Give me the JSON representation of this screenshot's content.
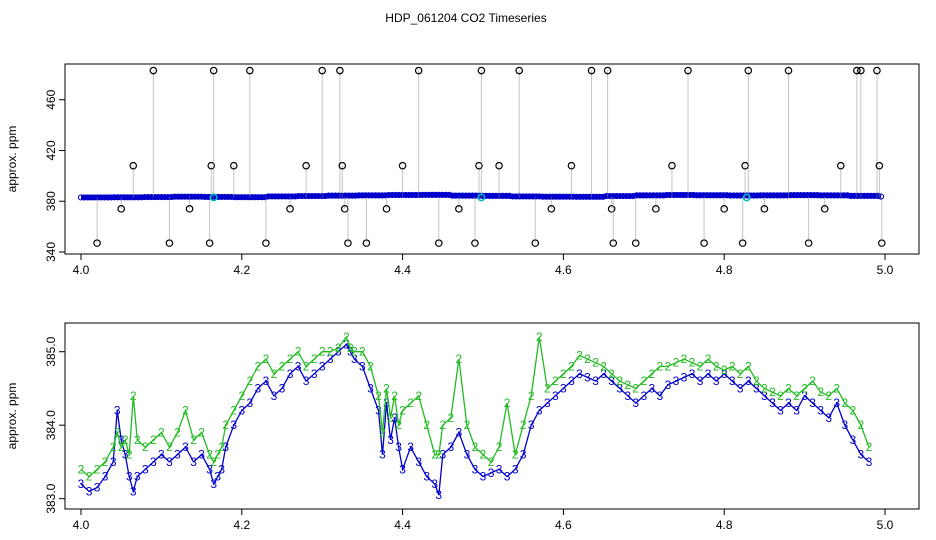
{
  "chart_data": [
    {
      "type": "scatter",
      "title": "HDP_061204  CO2 Timeseries",
      "xlabel": "",
      "ylabel": "approx. ppm",
      "xlim": [
        4.0,
        5.0
      ],
      "ylim": [
        340,
        485
      ],
      "x_ticks": [
        4.0,
        4.2,
        4.4,
        4.6,
        4.8,
        5.0
      ],
      "x_tick_labels": [
        "4.0",
        "4.2",
        "4.4",
        "4.6",
        "4.8",
        "5.0"
      ],
      "y_ticks": [
        340,
        380,
        420,
        460
      ],
      "y_tick_labels": [
        "340",
        "380",
        "420",
        "460"
      ],
      "baseline": {
        "x_start": 4.0,
        "x_end": 4.995,
        "y": [
          383.0,
          383.1,
          383.3,
          383.6,
          383.4,
          383.2,
          383.8,
          384.1,
          384.4,
          384.6,
          384.9,
          385.0,
          384.4,
          384.2,
          383.8,
          383.6,
          383.5,
          384.1,
          384.6,
          384.9,
          384.7,
          384.5,
          384.6,
          384.8,
          384.6,
          384.2,
          383.7
        ],
        "color": "#0000cc"
      },
      "outliers": {
        "x": [
          4.02,
          4.05,
          4.065,
          4.09,
          4.11,
          4.135,
          4.16,
          4.162,
          4.165,
          4.19,
          4.21,
          4.23,
          4.26,
          4.28,
          4.3,
          4.322,
          4.325,
          4.328,
          4.332,
          4.355,
          4.38,
          4.4,
          4.42,
          4.445,
          4.47,
          4.49,
          4.495,
          4.498,
          4.52,
          4.545,
          4.565,
          4.585,
          4.61,
          4.635,
          4.655,
          4.66,
          4.662,
          4.69,
          4.715,
          4.735,
          4.755,
          4.775,
          4.8,
          4.823,
          4.826,
          4.83,
          4.85,
          4.88,
          4.905,
          4.925,
          4.945,
          4.965,
          4.97,
          4.99,
          4.993,
          4.996
        ],
        "y": [
          347,
          374,
          408,
          483,
          347,
          374,
          347,
          408,
          483,
          408,
          483,
          347,
          374,
          408,
          483,
          483,
          408,
          374,
          347,
          347,
          374,
          408,
          483,
          347,
          374,
          347,
          408,
          483,
          408,
          483,
          347,
          374,
          408,
          483,
          483,
          374,
          347,
          347,
          374,
          408,
          483,
          347,
          374,
          347,
          408,
          483,
          374,
          483,
          347,
          374,
          408,
          483,
          483,
          483,
          408,
          347
        ],
        "marker": "circle",
        "color": "#000000"
      },
      "highlights": {
        "x": [
          4.165,
          4.498,
          4.828
        ],
        "y": [
          383,
          383,
          383
        ],
        "color": "#00bbbb"
      }
    },
    {
      "type": "line",
      "xlabel": "",
      "ylabel": "approx. ppm",
      "xlim": [
        4.0,
        5.0
      ],
      "ylim": [
        382.9,
        385.35
      ],
      "x_ticks": [
        4.0,
        4.2,
        4.4,
        4.6,
        4.8,
        5.0
      ],
      "x_tick_labels": [
        "4.0",
        "4.2",
        "4.4",
        "4.6",
        "4.8",
        "5.0"
      ],
      "y_ticks": [
        383.0,
        384.0,
        385.0
      ],
      "y_tick_labels": [
        "383.0",
        "384.0",
        "385.0"
      ],
      "series": [
        {
          "marker": "3",
          "color": "#0000cc",
          "x": [
            4.0,
            4.01,
            4.02,
            4.03,
            4.04,
            4.045,
            4.05,
            4.055,
            4.06,
            4.065,
            4.07,
            4.08,
            4.09,
            4.1,
            4.11,
            4.12,
            4.13,
            4.14,
            4.15,
            4.16,
            4.165,
            4.17,
            4.175,
            4.18,
            4.19,
            4.2,
            4.21,
            4.22,
            4.23,
            4.24,
            4.25,
            4.26,
            4.27,
            4.28,
            4.29,
            4.3,
            4.31,
            4.32,
            4.33,
            4.335,
            4.34,
            4.35,
            4.36,
            4.37,
            4.375,
            4.38,
            4.385,
            4.39,
            4.395,
            4.4,
            4.41,
            4.42,
            4.43,
            4.44,
            4.445,
            4.45,
            4.46,
            4.47,
            4.48,
            4.49,
            4.5,
            4.51,
            4.52,
            4.53,
            4.54,
            4.55,
            4.56,
            4.57,
            4.58,
            4.59,
            4.6,
            4.61,
            4.62,
            4.63,
            4.64,
            4.65,
            4.66,
            4.67,
            4.68,
            4.69,
            4.7,
            4.71,
            4.72,
            4.73,
            4.74,
            4.75,
            4.76,
            4.77,
            4.78,
            4.79,
            4.8,
            4.81,
            4.82,
            4.83,
            4.84,
            4.85,
            4.86,
            4.87,
            4.88,
            4.89,
            4.9,
            4.91,
            4.92,
            4.93,
            4.94,
            4.95,
            4.96,
            4.97,
            4.98
          ],
          "y": [
            383.2,
            383.1,
            383.15,
            383.3,
            383.5,
            384.2,
            383.8,
            383.6,
            383.3,
            383.1,
            383.3,
            383.4,
            383.5,
            383.6,
            383.5,
            383.6,
            383.7,
            383.5,
            383.6,
            383.4,
            383.2,
            383.3,
            383.4,
            383.7,
            384.0,
            384.2,
            384.3,
            384.5,
            384.6,
            384.4,
            384.5,
            384.7,
            384.8,
            384.6,
            384.7,
            384.8,
            384.9,
            385.0,
            385.1,
            385.0,
            384.9,
            384.8,
            384.5,
            384.2,
            383.6,
            384.3,
            383.8,
            384.1,
            383.7,
            383.4,
            383.7,
            383.5,
            383.3,
            383.2,
            383.05,
            383.6,
            383.7,
            383.9,
            383.6,
            383.4,
            383.3,
            383.35,
            383.4,
            383.3,
            383.4,
            383.6,
            384.0,
            384.2,
            384.3,
            384.4,
            384.5,
            384.6,
            384.7,
            384.65,
            384.6,
            384.7,
            384.6,
            384.5,
            384.4,
            384.3,
            384.4,
            384.5,
            384.4,
            384.55,
            384.6,
            384.65,
            384.7,
            384.6,
            384.7,
            384.6,
            384.7,
            384.6,
            384.5,
            384.6,
            384.5,
            384.4,
            384.3,
            384.2,
            384.3,
            384.2,
            384.4,
            384.3,
            384.2,
            384.1,
            384.3,
            384.0,
            383.8,
            383.6,
            383.5
          ]
        },
        {
          "marker": "2",
          "color": "#22bb22",
          "x": [
            4.0,
            4.01,
            4.02,
            4.03,
            4.04,
            4.045,
            4.05,
            4.055,
            4.06,
            4.065,
            4.07,
            4.08,
            4.09,
            4.1,
            4.11,
            4.12,
            4.13,
            4.14,
            4.15,
            4.16,
            4.165,
            4.17,
            4.175,
            4.18,
            4.19,
            4.2,
            4.21,
            4.22,
            4.23,
            4.24,
            4.25,
            4.26,
            4.27,
            4.28,
            4.29,
            4.3,
            4.31,
            4.32,
            4.33,
            4.335,
            4.34,
            4.35,
            4.36,
            4.37,
            4.375,
            4.38,
            4.385,
            4.39,
            4.395,
            4.4,
            4.41,
            4.42,
            4.43,
            4.44,
            4.445,
            4.45,
            4.46,
            4.47,
            4.48,
            4.49,
            4.5,
            4.51,
            4.52,
            4.53,
            4.54,
            4.55,
            4.56,
            4.57,
            4.58,
            4.59,
            4.6,
            4.61,
            4.62,
            4.63,
            4.64,
            4.65,
            4.66,
            4.67,
            4.68,
            4.69,
            4.7,
            4.71,
            4.72,
            4.73,
            4.74,
            4.75,
            4.76,
            4.77,
            4.78,
            4.79,
            4.8,
            4.81,
            4.82,
            4.83,
            4.84,
            4.85,
            4.86,
            4.87,
            4.88,
            4.89,
            4.9,
            4.91,
            4.92,
            4.93,
            4.94,
            4.95,
            4.96,
            4.97,
            4.98
          ],
          "y": [
            383.4,
            383.3,
            383.4,
            383.5,
            383.7,
            383.9,
            383.7,
            383.8,
            383.6,
            384.4,
            383.8,
            383.7,
            383.8,
            383.9,
            383.7,
            383.9,
            384.2,
            383.8,
            383.9,
            383.6,
            383.5,
            383.6,
            383.7,
            384.0,
            384.2,
            384.4,
            384.6,
            384.8,
            384.9,
            384.7,
            384.8,
            384.9,
            385.0,
            384.8,
            384.9,
            385.0,
            385.0,
            385.05,
            385.2,
            385.05,
            385.0,
            385.0,
            384.8,
            384.4,
            383.9,
            384.5,
            384.1,
            384.4,
            384.0,
            384.2,
            384.3,
            384.4,
            384.0,
            383.6,
            383.6,
            384.0,
            384.1,
            384.9,
            384.0,
            383.7,
            383.6,
            383.5,
            383.7,
            384.3,
            383.6,
            384.0,
            384.4,
            385.2,
            384.5,
            384.6,
            384.7,
            384.8,
            384.95,
            384.9,
            384.85,
            384.8,
            384.7,
            384.6,
            384.55,
            384.5,
            384.6,
            384.7,
            384.8,
            384.8,
            384.85,
            384.9,
            384.85,
            384.8,
            384.9,
            384.8,
            384.75,
            384.8,
            384.7,
            384.8,
            384.6,
            384.5,
            384.45,
            384.4,
            384.5,
            384.4,
            384.5,
            384.6,
            384.45,
            384.4,
            384.5,
            384.3,
            384.2,
            384.0,
            383.7
          ]
        }
      ]
    }
  ]
}
